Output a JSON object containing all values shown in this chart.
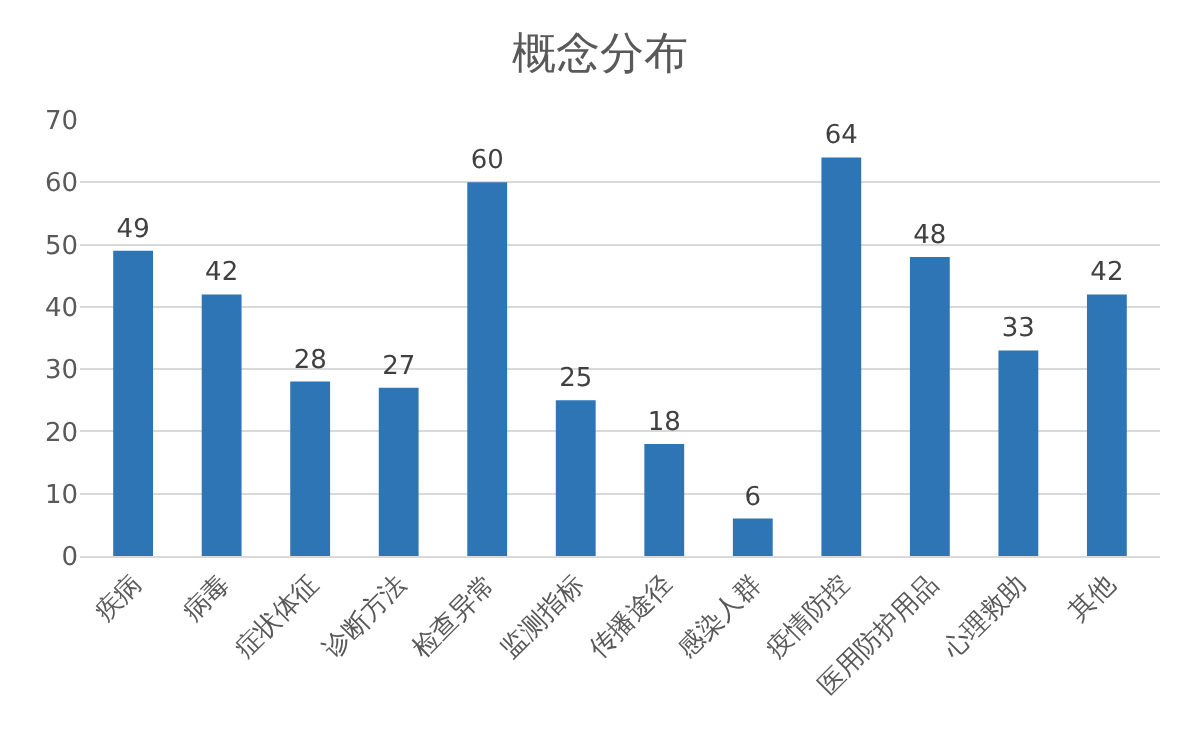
{
  "chart_data": {
    "type": "bar",
    "title": "概念分布",
    "categories": [
      "疾病",
      "病毒",
      "症状体征",
      "诊断方法",
      "检查异常",
      "监测指标",
      "传播途径",
      "感染人群",
      "疫情防控",
      "医用防护用品",
      "心理救助",
      "其他"
    ],
    "values": [
      49,
      42,
      28,
      27,
      60,
      25,
      18,
      6,
      64,
      48,
      33,
      42
    ],
    "color": "#2e75b6",
    "ylim": [
      0,
      70
    ],
    "yticks": [
      0,
      10,
      20,
      30,
      40,
      50,
      60,
      70
    ],
    "grid": "y",
    "data_labels": true,
    "legend": false
  }
}
